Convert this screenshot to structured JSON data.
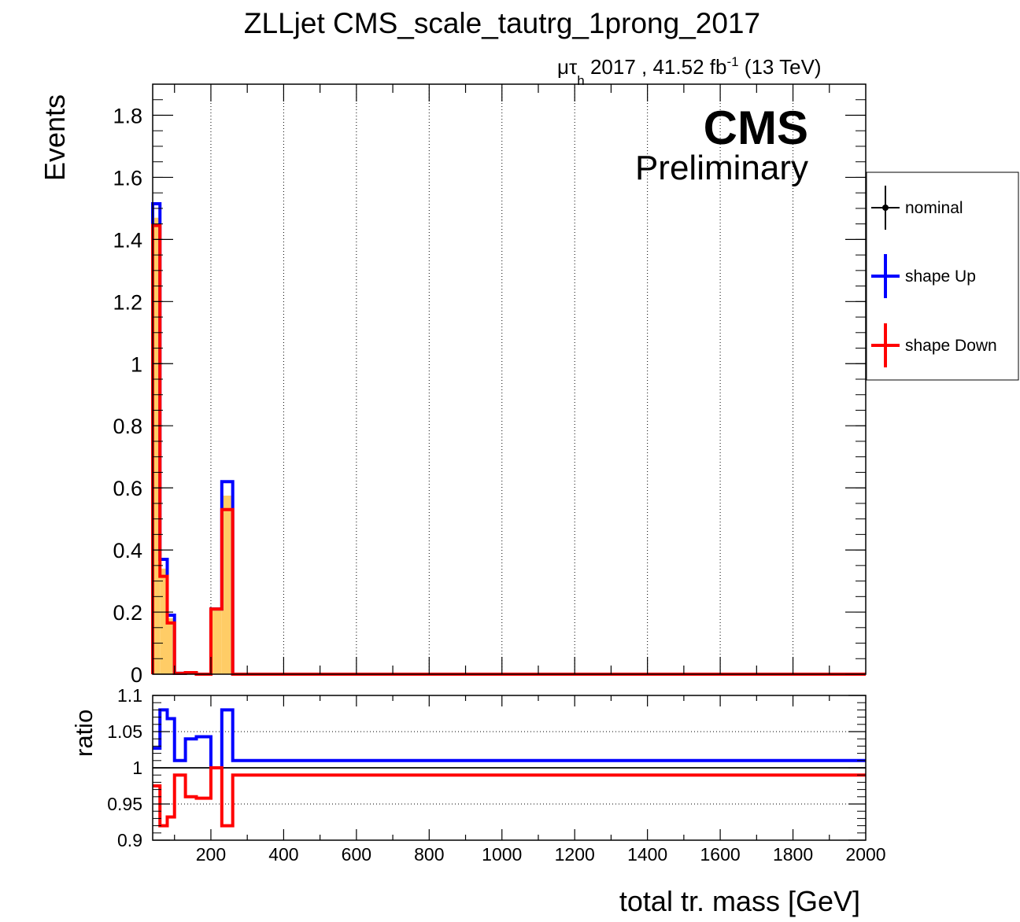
{
  "chart_data": {
    "type": "line",
    "title": "ZLLjet CMS_scale_tautrg_1prong_2017",
    "subtitle": {
      "mu": "μ",
      "tau": "τ",
      "h": "h",
      "text": " 2017 , 41.52 fb",
      "sup": "-1",
      "energy": " (13 TeV)"
    },
    "cms_label": "CMS",
    "preliminary_label": "Preliminary",
    "xlabel": "total tr. mass [GeV]",
    "ylabel": "Events",
    "ratio_ylabel": "ratio",
    "xlim": [
      40,
      2000
    ],
    "ylim": [
      0,
      1.9
    ],
    "ratio_ylim": [
      0.9,
      1.1
    ],
    "x_ticks": [
      200,
      400,
      600,
      800,
      1000,
      1200,
      1400,
      1600,
      1800,
      2000
    ],
    "x_tick_labels": [
      "200",
      "400",
      "600",
      "800",
      "1000",
      "1200",
      "1400",
      "1600",
      "1800",
      "2000"
    ],
    "y_ticks": [
      0,
      0.2,
      0.4,
      0.6,
      0.8,
      1,
      1.2,
      1.4,
      1.6,
      1.8
    ],
    "y_tick_labels": [
      "0",
      "0.2",
      "0.4",
      "0.6",
      "0.8",
      "1",
      "1.2",
      "1.4",
      "1.6",
      "1.8"
    ],
    "ratio_y_ticks": [
      0.9,
      0.95,
      1,
      1.05,
      1.1
    ],
    "ratio_y_tick_labels": [
      "0.9",
      "0.95",
      "1",
      "1.05",
      "1.1"
    ],
    "grid": true,
    "legend_position": "right",
    "bin_edges": [
      40,
      60,
      80,
      100,
      130,
      160,
      200,
      230,
      260,
      2000
    ],
    "series": [
      {
        "name": "nominal",
        "color": "#000000",
        "fill": "#ffcc66",
        "values": [
          1.47,
          0.34,
          0.18,
          0.003,
          0.005,
          0.0,
          0.21,
          0.575,
          0.0
        ]
      },
      {
        "name": "shape Up",
        "color": "#0000ff",
        "values": [
          1.515,
          0.37,
          0.19,
          0.003,
          0.005,
          0.0,
          0.21,
          0.62,
          0.0
        ]
      },
      {
        "name": "shape Down",
        "color": "#ff0000",
        "values": [
          1.445,
          0.315,
          0.165,
          0.003,
          0.005,
          0.0,
          0.21,
          0.53,
          0.0
        ]
      }
    ],
    "ratio_series": [
      {
        "name": "shape Up",
        "color": "#0000ff",
        "values": [
          1.027,
          1.08,
          1.068,
          1.01,
          1.04,
          1.043,
          1.0,
          1.08,
          1.01
        ]
      },
      {
        "name": "shape Down",
        "color": "#ff0000",
        "values": [
          0.975,
          0.92,
          0.932,
          0.99,
          0.96,
          0.958,
          1.0,
          0.92,
          0.99
        ]
      }
    ],
    "legend": [
      {
        "label": "nominal",
        "color": "#000000",
        "marker": "point"
      },
      {
        "label": "shape Up",
        "color": "#0000ff",
        "marker": "cross"
      },
      {
        "label": "shape Down",
        "color": "#ff0000",
        "marker": "cross"
      }
    ]
  }
}
